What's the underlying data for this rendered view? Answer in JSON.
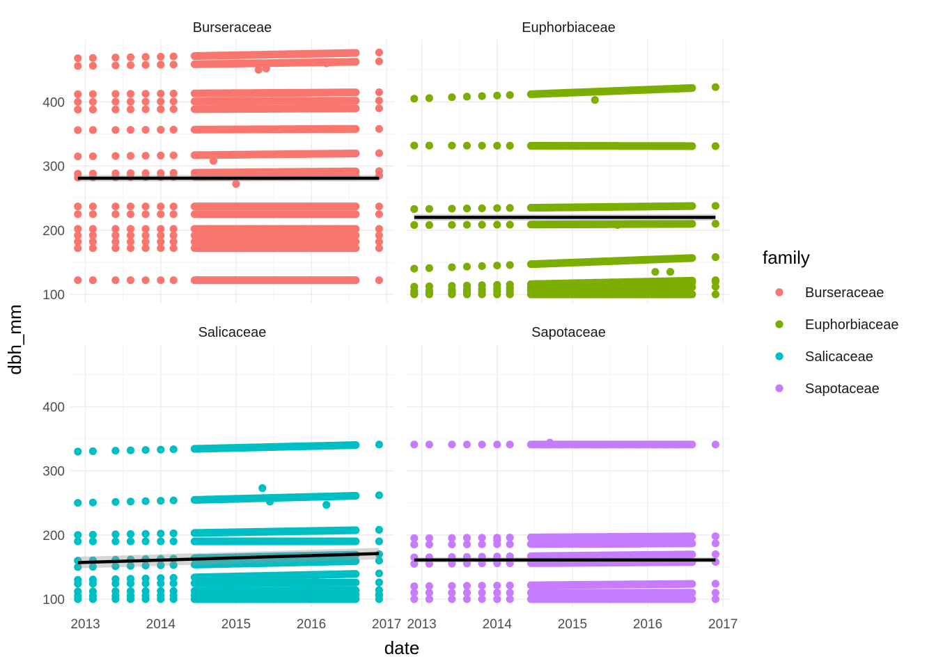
{
  "chart_data": {
    "type": "scatter",
    "xlabel": "date",
    "ylabel": "dbh_mm",
    "x_ticks": [
      "2013",
      "2014",
      "2015",
      "2016",
      "2017"
    ],
    "y_ticks": [
      100,
      200,
      300,
      400
    ],
    "xlim": [
      2012.8,
      2017.1
    ],
    "ylim": [
      87,
      497
    ],
    "grid": true,
    "legend": {
      "title": "family",
      "position": "right",
      "entries": [
        {
          "name": "Burseraceae",
          "color": "#F8766D"
        },
        {
          "name": "Euphorbiaceae",
          "color": "#7CAE00"
        },
        {
          "name": "Salicaceae",
          "color": "#00BFC4"
        },
        {
          "name": "Sapotaceae",
          "color": "#C77CFF"
        }
      ]
    },
    "facets": [
      {
        "name": "Burseraceae",
        "color": "#F8766D",
        "dense_span": [
          2014.45,
          2016.6
        ],
        "early_times": [
          2012.9,
          2013.1,
          2013.4,
          2013.6,
          2013.8,
          2014.0,
          2014.17
        ],
        "late_times": [
          2016.9
        ],
        "levels": [
          {
            "y": 122,
            "end_y": 122
          },
          {
            "y": 172,
            "end_y": 172
          },
          {
            "y": 182,
            "end_y": 182
          },
          {
            "y": 192,
            "end_y": 192
          },
          {
            "y": 202,
            "end_y": 202
          },
          {
            "y": 225,
            "end_y": 225
          },
          {
            "y": 237,
            "end_y": 237
          },
          {
            "y": 282,
            "end_y": 285
          },
          {
            "y": 288,
            "end_y": 292
          },
          {
            "y": 315,
            "end_y": 320
          },
          {
            "y": 356,
            "end_y": 358
          },
          {
            "y": 388,
            "end_y": 390
          },
          {
            "y": 400,
            "end_y": 402
          },
          {
            "y": 412,
            "end_y": 415
          },
          {
            "y": 456,
            "end_y": 463
          },
          {
            "y": 468,
            "end_y": 477
          }
        ],
        "outliers": [
          [
            2014.7,
            308
          ],
          [
            2015.0,
            272
          ],
          [
            2015.3,
            450
          ],
          [
            2015.4,
            452
          ],
          [
            2015.7,
            225
          ],
          [
            2016.2,
            460
          ]
        ],
        "trend": {
          "x": [
            2012.9,
            2016.9
          ],
          "y": [
            281,
            281
          ],
          "band": 5
        }
      },
      {
        "name": "Euphorbiaceae",
        "color": "#7CAE00",
        "dense_span": [
          2014.45,
          2016.6
        ],
        "early_times": [
          2012.9,
          2013.1,
          2013.4,
          2013.6,
          2013.8,
          2014.0,
          2014.17
        ],
        "late_times": [
          2016.9
        ],
        "levels": [
          {
            "y": 100,
            "end_y": 100
          },
          {
            "y": 102,
            "end_y": 112
          },
          {
            "y": 105,
            "end_y": 120
          },
          {
            "y": 112,
            "end_y": 122
          },
          {
            "y": 140,
            "end_y": 158
          },
          {
            "y": 208,
            "end_y": 210
          },
          {
            "y": 233,
            "end_y": 238
          },
          {
            "y": 332,
            "end_y": 331
          },
          {
            "y": 405,
            "end_y": 423
          }
        ],
        "outliers": [
          [
            2015.3,
            403
          ],
          [
            2015.6,
            208
          ],
          [
            2016.0,
            112
          ],
          [
            2016.1,
            135
          ],
          [
            2016.3,
            135
          ]
        ],
        "trend": {
          "x": [
            2012.9,
            2016.9
          ],
          "y": [
            220,
            220
          ],
          "band": 5
        }
      },
      {
        "name": "Salicaceae",
        "color": "#00BFC4",
        "dense_span": [
          2014.45,
          2016.6
        ],
        "early_times": [
          2012.9,
          2013.1,
          2013.4,
          2013.6,
          2013.8,
          2014.0,
          2014.17
        ],
        "late_times": [
          2016.9
        ],
        "levels": [
          {
            "y": 100,
            "end_y": 100
          },
          {
            "y": 105,
            "end_y": 107
          },
          {
            "y": 112,
            "end_y": 114
          },
          {
            "y": 124,
            "end_y": 126
          },
          {
            "y": 130,
            "end_y": 140
          },
          {
            "y": 150,
            "end_y": 160
          },
          {
            "y": 160,
            "end_y": 170
          },
          {
            "y": 190,
            "end_y": 190
          },
          {
            "y": 200,
            "end_y": 208
          },
          {
            "y": 250,
            "end_y": 262
          },
          {
            "y": 330,
            "end_y": 341
          }
        ],
        "outliers": [
          [
            2015.35,
            273
          ],
          [
            2015.45,
            252
          ],
          [
            2016.2,
            247
          ],
          [
            2016.05,
            132
          ],
          [
            2016.9,
            106
          ]
        ],
        "trend": {
          "x": [
            2012.9,
            2016.9
          ],
          "y": [
            157,
            171
          ],
          "band": 9
        }
      },
      {
        "name": "Sapotaceae",
        "color": "#C77CFF",
        "dense_span": [
          2014.45,
          2016.6
        ],
        "early_times": [
          2012.9,
          2013.1,
          2013.4,
          2013.6,
          2013.8,
          2014.0,
          2014.17
        ],
        "late_times": [
          2016.9
        ],
        "levels": [
          {
            "y": 100,
            "end_y": 100
          },
          {
            "y": 110,
            "end_y": 110
          },
          {
            "y": 120,
            "end_y": 124
          },
          {
            "y": 155,
            "end_y": 158
          },
          {
            "y": 165,
            "end_y": 170
          },
          {
            "y": 185,
            "end_y": 187
          },
          {
            "y": 195,
            "end_y": 198
          },
          {
            "y": 341,
            "end_y": 341
          }
        ],
        "outliers": [
          [
            2014.7,
            344
          ],
          [
            2014.0,
            192
          ]
        ],
        "trend": {
          "x": [
            2012.9,
            2016.9
          ],
          "y": [
            161,
            161
          ],
          "band": 4
        }
      }
    ]
  }
}
